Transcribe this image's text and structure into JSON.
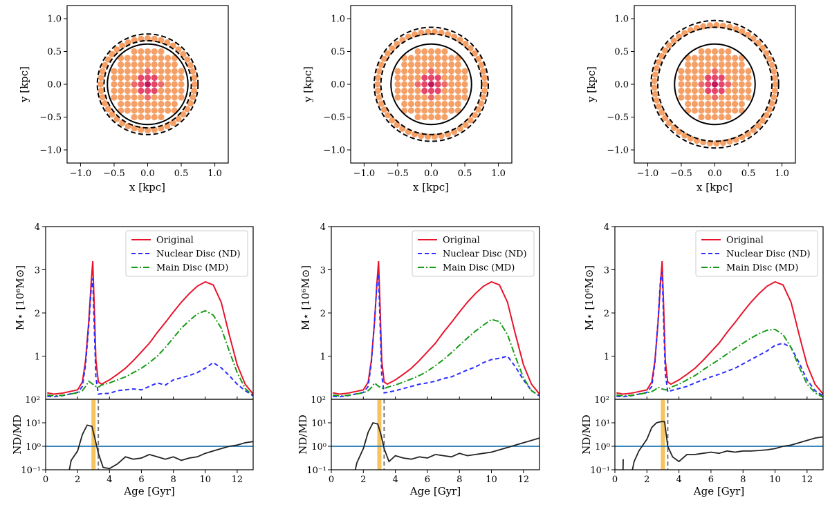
{
  "colors": {
    "original": "#e8132a",
    "nd": "#2b2bff",
    "md": "#169a16",
    "ratio": "#222222",
    "unity": "#1f77b4",
    "band": "#f5b942",
    "dots_outer": "#f5a066",
    "dots_inner": "#e8456a",
    "dots_core": "#c2185b",
    "ring_solid": "#000000",
    "ring_dashed": "#000000"
  },
  "chart_data": [
    {
      "type": "scatter",
      "panel": "spatial-1",
      "title": "",
      "xlabel": "x [kpc]",
      "ylabel": "y [kpc]",
      "xlim": [
        -1.2,
        1.2
      ],
      "ylim": [
        -1.2,
        1.2
      ],
      "xticks": [
        "−1.0",
        "−0.5",
        "0.0",
        "0.5",
        "1.0"
      ],
      "xtick_values": [
        -1.0,
        -0.5,
        0.0,
        0.5,
        1.0
      ],
      "yticks": [
        "−1.0",
        "−0.5",
        "0.0",
        "0.5",
        "1.0"
      ],
      "ytick_values": [
        -1.0,
        -0.5,
        0.0,
        0.5,
        1.0
      ],
      "nd_radius": 0.6,
      "md_inner_radius": 0.65,
      "md_outer_radius": 0.75,
      "grid_spacing": 0.1
    },
    {
      "type": "scatter",
      "panel": "spatial-2",
      "title": "",
      "xlabel": "x [kpc]",
      "ylabel": "y [kpc]",
      "xlim": [
        -1.2,
        1.2
      ],
      "ylim": [
        -1.2,
        1.2
      ],
      "xticks": [
        "−1.0",
        "−0.5",
        "0.0",
        "0.5",
        "1.0"
      ],
      "xtick_values": [
        -1.0,
        -0.5,
        0.0,
        0.5,
        1.0
      ],
      "yticks": [
        "−1.0",
        "−0.5",
        "0.0",
        "0.5",
        "1.0"
      ],
      "ytick_values": [
        -1.0,
        -0.5,
        0.0,
        0.5,
        1.0
      ],
      "nd_radius": 0.6,
      "md_inner_radius": 0.75,
      "md_outer_radius": 0.85,
      "grid_spacing": 0.1
    },
    {
      "type": "scatter",
      "panel": "spatial-3",
      "title": "",
      "xlabel": "x [kpc]",
      "ylabel": "y [kpc]",
      "xlim": [
        -1.2,
        1.2
      ],
      "ylim": [
        -1.2,
        1.2
      ],
      "xticks": [
        "−1.0",
        "−0.5",
        "0.0",
        "0.5",
        "1.0"
      ],
      "xtick_values": [
        -1.0,
        -0.5,
        0.0,
        0.5,
        1.0
      ],
      "yticks": [
        "−1.0",
        "−0.5",
        "0.0",
        "0.5",
        "1.0"
      ],
      "ytick_values": [
        -1.0,
        -0.5,
        0.0,
        0.5,
        1.0
      ],
      "nd_radius": 0.6,
      "md_inner_radius": 0.85,
      "md_outer_radius": 0.95,
      "grid_spacing": 0.1
    },
    {
      "type": "line",
      "panel": "sfh-1",
      "xlabel": "Age [Gyr]",
      "ylabel": "M⋆ [10⁶M⊙]",
      "ratio_ylabel": "ND/MD",
      "xlim": [
        0,
        13
      ],
      "ylim": [
        0,
        4
      ],
      "xticks": [
        "0",
        "2",
        "4",
        "6",
        "8",
        "10",
        "12"
      ],
      "xtick_values": [
        0,
        2,
        4,
        6,
        8,
        10,
        12
      ],
      "yticks": [
        "1",
        "2",
        "3",
        "4"
      ],
      "ytick_values": [
        1,
        2,
        3,
        4
      ],
      "y_bottom_label": "10²",
      "ratio_ylim_log": [
        -1,
        2
      ],
      "ratio_yticks": [
        "10⁻¹",
        "10⁰",
        "10¹",
        "10²"
      ],
      "ratio_ytick_values": [
        -1,
        0,
        1,
        2
      ],
      "band_age": 3.0,
      "dashed_age": 3.3,
      "legend": [
        "Original",
        "Nuclear Disc (ND)",
        "Main Disc (MD)"
      ],
      "legend_position": "top-right",
      "x": [
        0.1,
        0.5,
        1.0,
        1.5,
        2.0,
        2.3,
        2.5,
        2.7,
        2.85,
        2.95,
        3.05,
        3.15,
        3.3,
        3.5,
        4.0,
        4.5,
        5.0,
        5.5,
        6.0,
        6.5,
        7.0,
        7.5,
        8.0,
        8.5,
        9.0,
        9.5,
        10.0,
        10.5,
        11.0,
        11.5,
        12.0,
        12.5,
        13.0
      ],
      "series": [
        {
          "name": "Original",
          "values": [
            0.15,
            0.12,
            0.14,
            0.18,
            0.22,
            0.4,
            0.9,
            1.8,
            2.7,
            3.2,
            2.1,
            0.9,
            0.4,
            0.35,
            0.45,
            0.58,
            0.72,
            0.9,
            1.1,
            1.3,
            1.55,
            1.78,
            2.02,
            2.25,
            2.45,
            2.62,
            2.72,
            2.65,
            2.25,
            1.5,
            0.8,
            0.35,
            0.12
          ]
        },
        {
          "name": "Nuclear Disc (ND)",
          "values": [
            0.07,
            0.06,
            0.08,
            0.12,
            0.16,
            0.3,
            0.8,
            1.7,
            2.55,
            2.8,
            1.6,
            0.5,
            0.12,
            0.13,
            0.14,
            0.2,
            0.22,
            0.24,
            0.22,
            0.3,
            0.38,
            0.33,
            0.45,
            0.5,
            0.55,
            0.62,
            0.72,
            0.85,
            0.73,
            0.55,
            0.35,
            0.2,
            0.08
          ]
        },
        {
          "name": "Main Disc (MD)",
          "values": [
            0.1,
            0.08,
            0.09,
            0.12,
            0.15,
            0.2,
            0.3,
            0.42,
            0.38,
            0.35,
            0.32,
            0.3,
            0.28,
            0.33,
            0.38,
            0.45,
            0.52,
            0.62,
            0.72,
            0.85,
            1.0,
            1.2,
            1.42,
            1.65,
            1.82,
            1.98,
            2.05,
            1.95,
            1.65,
            1.12,
            0.62,
            0.25,
            0.08
          ]
        }
      ],
      "ratio": [
        {
          "x": [
            1.4,
            1.6,
            2.0,
            2.3,
            2.6,
            2.9,
            3.1,
            3.3,
            3.6,
            4.0,
            4.5,
            5.0,
            5.5,
            6.0,
            6.5,
            7.0,
            7.5,
            8.0,
            8.5,
            9.0,
            9.5,
            10.0,
            10.5,
            11.0,
            11.5,
            12.0,
            12.5,
            13.0
          ],
          "log_values": [
            -1.3,
            -0.6,
            -0.2,
            0.5,
            0.9,
            0.85,
            0.3,
            -0.3,
            -0.9,
            -0.95,
            -0.75,
            -0.45,
            -0.55,
            -0.5,
            -0.35,
            -0.45,
            -0.55,
            -0.45,
            -0.6,
            -0.5,
            -0.45,
            -0.3,
            -0.2,
            -0.1,
            0.0,
            0.05,
            0.15,
            0.2
          ]
        }
      ]
    },
    {
      "type": "line",
      "panel": "sfh-2",
      "xlabel": "Age [Gyr]",
      "ylabel": "M⋆ [10⁶M⊙]",
      "ratio_ylabel": "ND/MD",
      "xlim": [
        0,
        13
      ],
      "ylim": [
        0,
        4
      ],
      "xticks": [
        "0",
        "2",
        "4",
        "6",
        "8",
        "10",
        "12"
      ],
      "xtick_values": [
        0,
        2,
        4,
        6,
        8,
        10,
        12
      ],
      "yticks": [
        "1",
        "2",
        "3",
        "4"
      ],
      "ytick_values": [
        1,
        2,
        3,
        4
      ],
      "y_bottom_label": "10²",
      "ratio_ylim_log": [
        -1,
        2
      ],
      "ratio_yticks": [
        "10⁻¹",
        "10⁰",
        "10¹",
        "10²"
      ],
      "ratio_ytick_values": [
        -1,
        0,
        1,
        2
      ],
      "band_age": 3.0,
      "dashed_age": 3.3,
      "legend": [
        "Original",
        "Nuclear Disc (ND)",
        "Main Disc (MD)"
      ],
      "legend_position": "top-right",
      "x": [
        0.1,
        0.5,
        1.0,
        1.5,
        2.0,
        2.3,
        2.5,
        2.7,
        2.85,
        2.95,
        3.05,
        3.15,
        3.3,
        3.5,
        4.0,
        4.5,
        5.0,
        5.5,
        6.0,
        6.5,
        7.0,
        7.5,
        8.0,
        8.5,
        9.0,
        9.5,
        10.0,
        10.5,
        11.0,
        11.5,
        12.0,
        12.5,
        13.0
      ],
      "series": [
        {
          "name": "Original",
          "values": [
            0.15,
            0.12,
            0.14,
            0.18,
            0.22,
            0.4,
            0.9,
            1.8,
            2.7,
            3.2,
            2.1,
            0.9,
            0.4,
            0.35,
            0.45,
            0.58,
            0.72,
            0.9,
            1.1,
            1.3,
            1.55,
            1.78,
            2.02,
            2.25,
            2.45,
            2.62,
            2.72,
            2.65,
            2.25,
            1.5,
            0.8,
            0.35,
            0.12
          ]
        },
        {
          "name": "Nuclear Disc (ND)",
          "values": [
            0.07,
            0.06,
            0.08,
            0.12,
            0.16,
            0.3,
            0.85,
            1.8,
            2.7,
            2.9,
            1.7,
            0.55,
            0.15,
            0.16,
            0.2,
            0.25,
            0.3,
            0.35,
            0.38,
            0.42,
            0.48,
            0.52,
            0.6,
            0.68,
            0.75,
            0.85,
            0.92,
            0.95,
            1.0,
            0.75,
            0.45,
            0.2,
            0.08
          ]
        },
        {
          "name": "Main Disc (MD)",
          "values": [
            0.1,
            0.08,
            0.09,
            0.12,
            0.15,
            0.2,
            0.27,
            0.38,
            0.33,
            0.3,
            0.28,
            0.26,
            0.24,
            0.28,
            0.33,
            0.4,
            0.47,
            0.55,
            0.65,
            0.78,
            0.92,
            1.08,
            1.25,
            1.42,
            1.58,
            1.72,
            1.85,
            1.8,
            1.5,
            0.98,
            0.5,
            0.2,
            0.07
          ]
        }
      ],
      "ratio": [
        {
          "x": [
            1.4,
            1.6,
            2.0,
            2.3,
            2.6,
            2.9,
            3.1,
            3.3,
            3.6,
            4.0,
            4.5,
            5.0,
            5.5,
            6.0,
            6.5,
            7.0,
            7.5,
            8.0,
            8.5,
            9.0,
            9.5,
            10.0,
            10.5,
            11.0,
            11.5,
            12.0,
            12.5,
            13.0
          ],
          "log_values": [
            -1.3,
            -0.7,
            -0.1,
            0.6,
            1.0,
            0.95,
            0.5,
            -0.1,
            -0.65,
            -0.4,
            -0.5,
            -0.55,
            -0.45,
            -0.5,
            -0.35,
            -0.4,
            -0.45,
            -0.3,
            -0.4,
            -0.35,
            -0.3,
            -0.25,
            -0.15,
            -0.05,
            0.05,
            0.15,
            0.25,
            0.35
          ]
        }
      ]
    },
    {
      "type": "line",
      "panel": "sfh-3",
      "xlabel": "Age [Gyr]",
      "ylabel": "M⋆ [10⁶M⊙]",
      "ratio_ylabel": "ND/MD",
      "xlim": [
        0,
        13
      ],
      "ylim": [
        0,
        4
      ],
      "xticks": [
        "0",
        "2",
        "4",
        "6",
        "8",
        "10",
        "12"
      ],
      "xtick_values": [
        0,
        2,
        4,
        6,
        8,
        10,
        12
      ],
      "yticks": [
        "1",
        "2",
        "3",
        "4"
      ],
      "ytick_values": [
        1,
        2,
        3,
        4
      ],
      "y_bottom_label": "10²",
      "ratio_ylim_log": [
        -1,
        2
      ],
      "ratio_yticks": [
        "10⁻¹",
        "10⁰",
        "10¹",
        "10²"
      ],
      "ratio_ytick_values": [
        -1,
        0,
        1,
        2
      ],
      "band_age": 3.0,
      "dashed_age": 3.3,
      "legend": [
        "Original",
        "Nuclear Disc (ND)",
        "Main Disc (MD)"
      ],
      "legend_position": "top-right",
      "x": [
        0.1,
        0.5,
        1.0,
        1.5,
        2.0,
        2.3,
        2.5,
        2.7,
        2.85,
        2.95,
        3.05,
        3.15,
        3.3,
        3.5,
        4.0,
        4.5,
        5.0,
        5.5,
        6.0,
        6.5,
        7.0,
        7.5,
        8.0,
        8.5,
        9.0,
        9.5,
        10.0,
        10.5,
        11.0,
        11.5,
        12.0,
        12.5,
        13.0
      ],
      "series": [
        {
          "name": "Original",
          "values": [
            0.15,
            0.12,
            0.14,
            0.18,
            0.22,
            0.4,
            0.9,
            1.8,
            2.7,
            3.2,
            2.1,
            0.9,
            0.4,
            0.35,
            0.45,
            0.58,
            0.72,
            0.9,
            1.1,
            1.3,
            1.55,
            1.78,
            2.02,
            2.25,
            2.45,
            2.62,
            2.72,
            2.65,
            2.25,
            1.5,
            0.8,
            0.35,
            0.12
          ]
        },
        {
          "name": "Nuclear Disc (ND)",
          "values": [
            0.07,
            0.06,
            0.08,
            0.12,
            0.16,
            0.3,
            0.85,
            1.85,
            2.8,
            2.95,
            1.75,
            0.6,
            0.17,
            0.2,
            0.25,
            0.3,
            0.38,
            0.45,
            0.52,
            0.58,
            0.65,
            0.72,
            0.82,
            0.92,
            1.02,
            1.12,
            1.25,
            1.3,
            1.2,
            0.85,
            0.45,
            0.2,
            0.08
          ]
        },
        {
          "name": "Main Disc (MD)",
          "values": [
            0.1,
            0.08,
            0.09,
            0.12,
            0.15,
            0.18,
            0.22,
            0.28,
            0.25,
            0.24,
            0.23,
            0.22,
            0.22,
            0.28,
            0.35,
            0.45,
            0.55,
            0.68,
            0.8,
            0.92,
            1.05,
            1.18,
            1.3,
            1.42,
            1.52,
            1.6,
            1.62,
            1.5,
            1.2,
            0.75,
            0.35,
            0.15,
            0.05
          ]
        }
      ],
      "ratio": [
        {
          "x": [
            0.5,
            0.52
          ],
          "log_values": [
            -1.3,
            -0.55
          ]
        },
        {
          "x": [
            1.0,
            1.2,
            1.5,
            2.0,
            2.3,
            2.6,
            2.9,
            3.1,
            3.3,
            3.6,
            4.0,
            4.5,
            5.0,
            5.5,
            6.0,
            6.5,
            7.0,
            7.5,
            8.0,
            8.5,
            9.0,
            9.5,
            10.0,
            10.5,
            11.0,
            11.5,
            12.0,
            12.5,
            13.0
          ],
          "log_values": [
            -1.3,
            -0.65,
            -0.2,
            0.3,
            0.8,
            1.0,
            1.05,
            1.05,
            0.0,
            -0.45,
            -0.65,
            -0.35,
            -0.35,
            -0.3,
            -0.25,
            -0.3,
            -0.2,
            -0.25,
            -0.2,
            -0.2,
            -0.18,
            -0.15,
            -0.1,
            0.0,
            0.05,
            0.15,
            0.25,
            0.35,
            0.4
          ]
        }
      ]
    }
  ]
}
